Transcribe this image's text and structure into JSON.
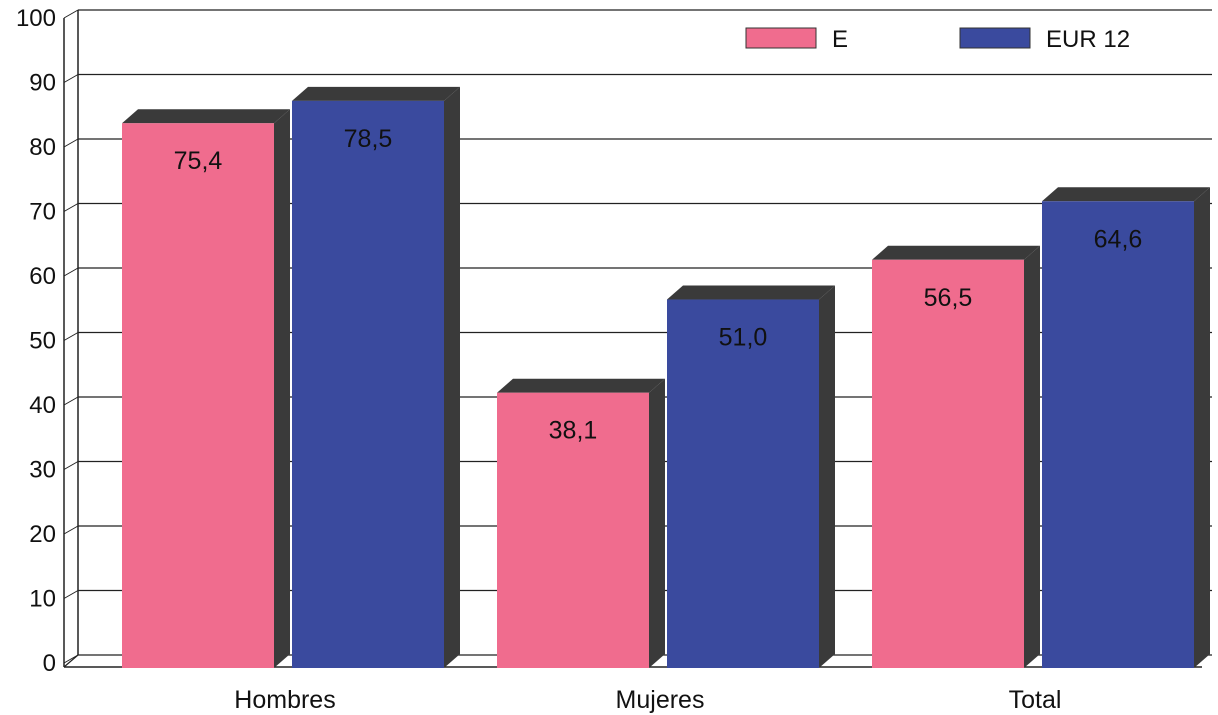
{
  "chart_data": {
    "type": "bar",
    "categories": [
      "Hombres",
      "Mujeres",
      "Total"
    ],
    "series": [
      {
        "name": "E",
        "values": [
          75.4,
          38.1,
          56.5
        ],
        "labels": [
          "75,4",
          "38,1",
          "56,5"
        ],
        "color": "#f06c8e"
      },
      {
        "name": "EUR 12",
        "values": [
          78.5,
          51.0,
          64.6
        ],
        "labels": [
          "78,5",
          "51,0",
          "64,6"
        ],
        "color": "#3a4a9e"
      }
    ],
    "ylim": [
      0,
      100
    ],
    "yticks": [
      0,
      10,
      20,
      30,
      40,
      50,
      60,
      70,
      80,
      90,
      100
    ],
    "grid": true,
    "legend_position": "top-right",
    "style": "3d",
    "side_color": "#3a3a3a",
    "grid_color": "#222222",
    "axis_color": "#222222"
  }
}
